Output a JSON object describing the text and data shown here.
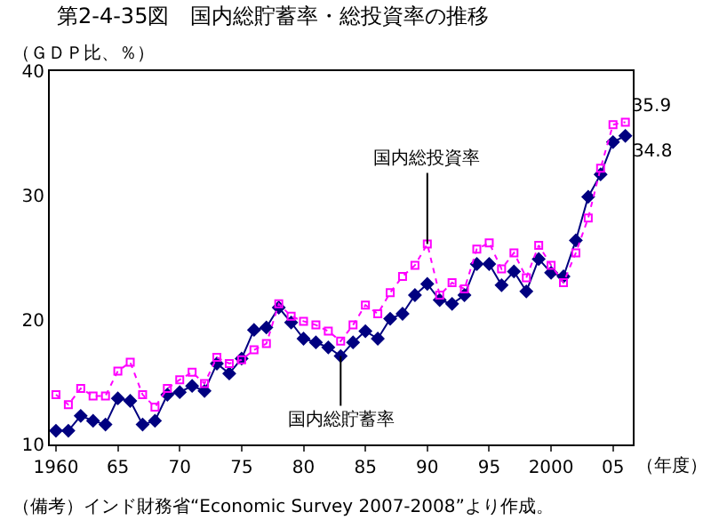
{
  "chart_data": {
    "type": "line",
    "title": "第2-4-35図　国内総貯蓄率・総投資率の推移",
    "ylabel": "（ＧＤＰ比、％）",
    "xlabel": "（年度）",
    "x": [
      1960,
      1961,
      1962,
      1963,
      1964,
      1965,
      1966,
      1967,
      1968,
      1969,
      1970,
      1971,
      1972,
      1973,
      1974,
      1975,
      1976,
      1977,
      1978,
      1979,
      1980,
      1981,
      1982,
      1983,
      1984,
      1985,
      1986,
      1987,
      1988,
      1989,
      1990,
      1991,
      1992,
      1993,
      1994,
      1995,
      1996,
      1997,
      1998,
      1999,
      2000,
      2001,
      2002,
      2003,
      2004,
      2005,
      2006
    ],
    "series": [
      {
        "color": "#ff00ff",
        "marker": "square",
        "line_style": "dotted",
        "values": [
          14.0,
          13.2,
          14.5,
          13.9,
          13.9,
          15.9,
          16.6,
          14.0,
          13.0,
          14.5,
          15.2,
          15.8,
          14.9,
          17.0,
          16.5,
          16.8,
          17.6,
          18.1,
          21.3,
          20.3,
          19.9,
          19.6,
          19.1,
          18.3,
          19.6,
          21.2,
          20.5,
          22.2,
          23.5,
          24.4,
          26.1,
          22.0,
          23.0,
          22.5,
          25.7,
          26.2,
          24.1,
          25.4,
          23.4,
          26.0,
          24.4,
          23.0,
          25.4,
          28.2,
          32.2,
          35.7,
          35.9
        ],
        "value_labels": [
          null,
          null,
          null,
          null,
          null,
          null,
          null,
          null,
          null,
          null,
          null,
          null,
          null,
          null,
          null,
          null,
          null,
          null,
          null,
          null,
          null,
          null,
          null,
          null,
          null,
          null,
          null,
          null,
          null,
          null,
          null,
          null,
          null,
          null,
          null,
          null,
          null,
          null,
          null,
          null,
          null,
          null,
          null,
          null,
          null,
          null,
          "35.9"
        ]
      },
      {
        "color": "#000080",
        "marker": "diamond",
        "line_style": "solid",
        "values": [
          11.1,
          11.1,
          12.3,
          11.9,
          11.6,
          13.7,
          13.5,
          11.6,
          11.9,
          14.0,
          14.2,
          14.7,
          14.3,
          16.5,
          15.7,
          16.9,
          19.2,
          19.4,
          21.0,
          19.8,
          18.5,
          18.2,
          17.8,
          17.1,
          18.2,
          19.1,
          18.5,
          20.1,
          20.5,
          22.0,
          22.9,
          21.6,
          21.3,
          22.0,
          24.5,
          24.5,
          22.8,
          23.9,
          22.3,
          24.9,
          23.8,
          23.5,
          26.4,
          29.9,
          31.7,
          34.3,
          34.8
        ],
        "value_labels": [
          null,
          null,
          null,
          null,
          null,
          null,
          null,
          null,
          null,
          null,
          null,
          null,
          null,
          null,
          null,
          null,
          null,
          null,
          null,
          null,
          null,
          null,
          null,
          null,
          null,
          null,
          null,
          null,
          null,
          null,
          null,
          null,
          null,
          null,
          null,
          null,
          null,
          null,
          null,
          null,
          null,
          null,
          null,
          null,
          null,
          null,
          "34.8"
        ]
      }
    ],
    "xlim": [
      1959.5,
      2006.6
    ],
    "xticks": [
      1960,
      {
        "value": 1965,
        "label": "65"
      },
      {
        "value": 1970,
        "label": "70"
      },
      {
        "value": 1975,
        "label": "75"
      },
      {
        "value": 1980,
        "label": "80"
      },
      {
        "value": 1985,
        "label": "85"
      },
      {
        "value": 1990,
        "label": "90"
      },
      {
        "value": 1995,
        "label": "95"
      },
      2000,
      {
        "value": 2005,
        "label": "05"
      }
    ],
    "ylim": [
      10,
      40
    ],
    "yticks": [
      10,
      20,
      30,
      40
    ],
    "grid": false,
    "annotations": [
      {
        "text": "国内総投資率",
        "x": 1990,
        "y": 26.1
      },
      {
        "text": "国内総貯蓄率",
        "x": 1983,
        "y": 17.1
      },
      "（備考）インド財務省“Economic Survey 2007-2008”より作成。"
    ]
  }
}
